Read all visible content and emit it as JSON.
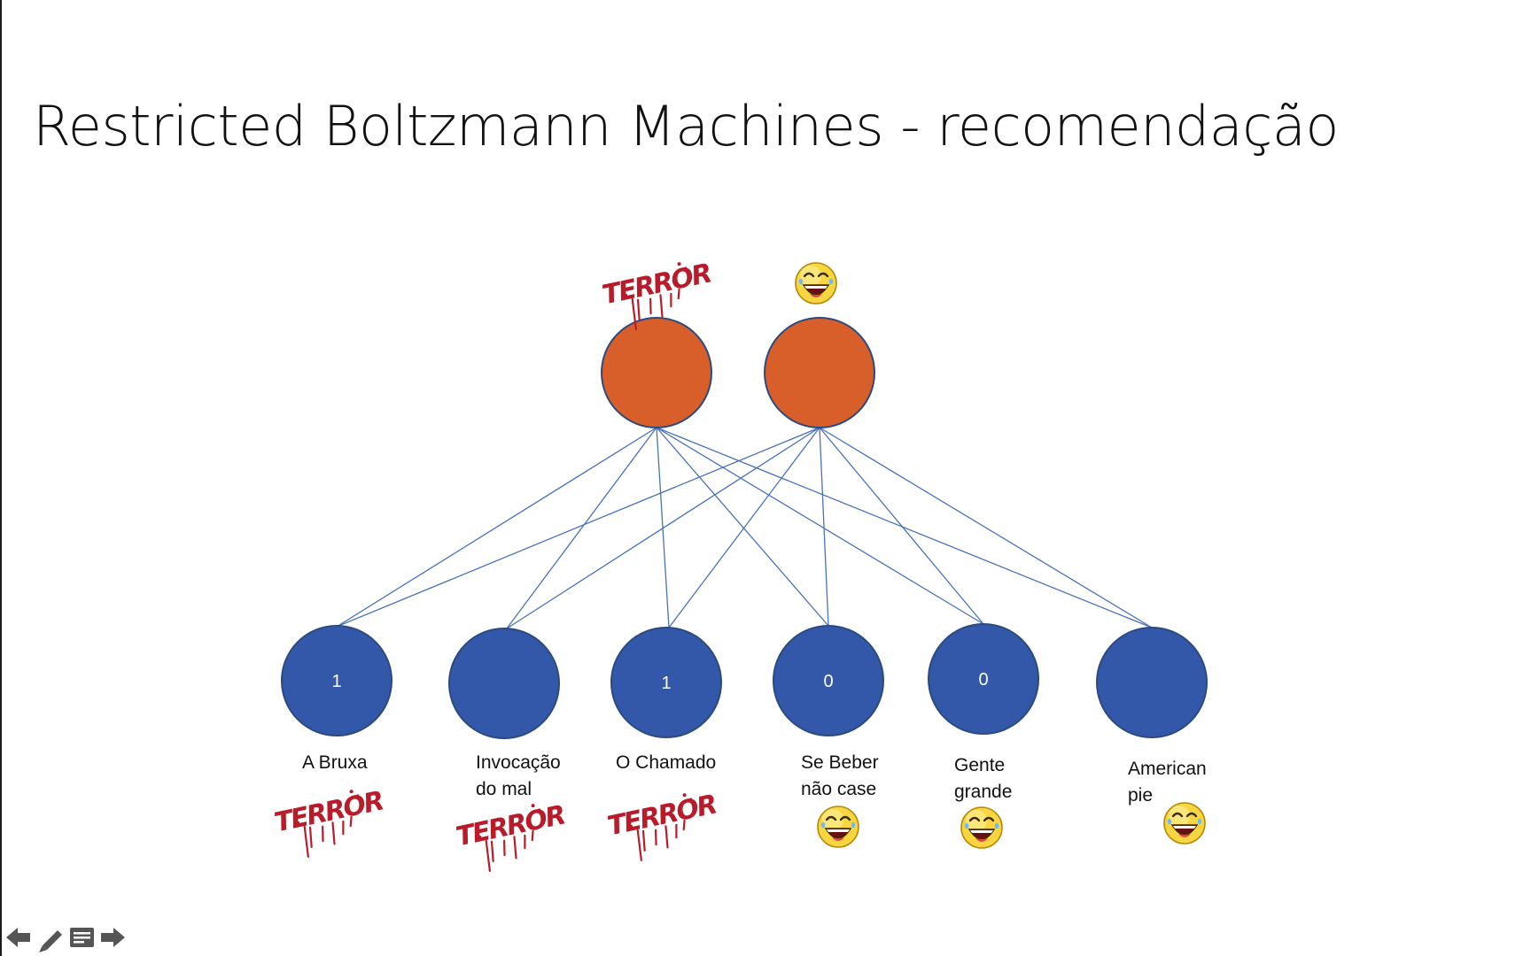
{
  "slide": {
    "title": "Restricted Boltzmann Machines - recomendação"
  },
  "colors": {
    "hidden_node": "#D95F2A",
    "visible_node": "#3358AA",
    "node_stroke": "#2B4A7E",
    "edge": "#4A72B8",
    "terror": "#B81C2A",
    "emoji_face": "#F7D640"
  },
  "hidden_nodes": [
    {
      "id": "terror",
      "icon": "terror-icon"
    },
    {
      "id": "comedy",
      "icon": "laughing-emoji-icon"
    }
  ],
  "visible_nodes": [
    {
      "id": "a-bruxa",
      "value": "1",
      "label_lines": [
        "A Bruxa"
      ],
      "icon": "terror-icon"
    },
    {
      "id": "invocacao-do-mal",
      "value": "",
      "label_lines": [
        "Invocação",
        "do mal"
      ],
      "icon": "terror-icon"
    },
    {
      "id": "o-chamado",
      "value": "1",
      "label_lines": [
        "O Chamado"
      ],
      "icon": "terror-icon"
    },
    {
      "id": "se-beber-nao-case",
      "value": "0",
      "label_lines": [
        "Se Beber",
        "não case"
      ],
      "icon": "laughing-emoji-icon"
    },
    {
      "id": "gente-grande",
      "value": "0",
      "label_lines": [
        "Gente",
        "grande"
      ],
      "icon": "laughing-emoji-icon"
    },
    {
      "id": "american-pie",
      "value": "",
      "label_lines": [
        "American",
        "pie"
      ],
      "icon": "laughing-emoji-icon"
    }
  ],
  "terror_icon_text": "TERROR",
  "toolbar": {
    "items": [
      {
        "name": "previous-slide-button",
        "icon": "arrow-left-icon"
      },
      {
        "name": "pen-tool-button",
        "icon": "pencil-icon"
      },
      {
        "name": "slide-menu-button",
        "icon": "menu-icon"
      },
      {
        "name": "next-slide-button",
        "icon": "arrow-right-icon"
      }
    ]
  }
}
